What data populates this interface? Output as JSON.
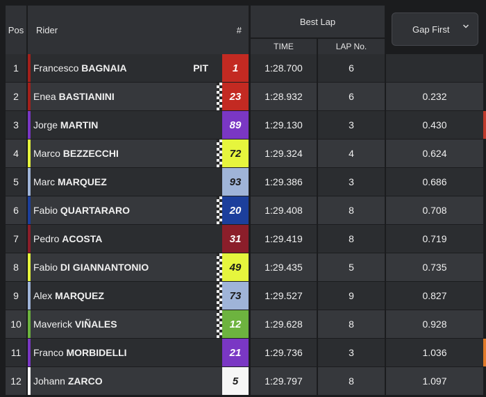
{
  "header": {
    "pos": "Pos",
    "rider": "Rider",
    "number": "#",
    "best_lap": "Best Lap",
    "time": "TIME",
    "lap_no": "LAP No.",
    "gap_select": "Gap First"
  },
  "rows": [
    {
      "pos": "1",
      "first": "Francesco",
      "last": "BAGNAIA",
      "pit": "PIT",
      "num": "1",
      "numBg": "#c32a22",
      "numColor": "#ffffff",
      "stripe": "#a3201b",
      "checker": false,
      "time": "1:28.700",
      "lap": "6",
      "gap": "",
      "edge": ""
    },
    {
      "pos": "2",
      "first": "Enea",
      "last": "BASTIANINI",
      "pit": "",
      "num": "23",
      "numBg": "#c32a22",
      "numColor": "#ffffff",
      "stripe": "#a3201b",
      "checker": true,
      "time": "1:28.932",
      "lap": "6",
      "gap": "0.232",
      "edge": ""
    },
    {
      "pos": "3",
      "first": "Jorge",
      "last": "MARTIN",
      "pit": "",
      "num": "89",
      "numBg": "#7a37c4",
      "numColor": "#ffffff",
      "stripe": "#7a37c4",
      "checker": false,
      "time": "1:29.130",
      "lap": "3",
      "gap": "0.430",
      "edge": "#c0392b"
    },
    {
      "pos": "4",
      "first": "Marco",
      "last": "BEZZECCHI",
      "pit": "",
      "num": "72",
      "numBg": "#e6f53d",
      "numColor": "#1a1a1a",
      "stripe": "#e6f53d",
      "checker": true,
      "time": "1:29.324",
      "lap": "4",
      "gap": "0.624",
      "edge": ""
    },
    {
      "pos": "5",
      "first": "Marc",
      "last": "MARQUEZ",
      "pit": "",
      "num": "93",
      "numBg": "#9fb4d8",
      "numColor": "#1a1a1a",
      "stripe": "#9fb4d8",
      "checker": false,
      "time": "1:29.386",
      "lap": "3",
      "gap": "0.686",
      "edge": ""
    },
    {
      "pos": "6",
      "first": "Fabio",
      "last": "QUARTARARO",
      "pit": "",
      "num": "20",
      "numBg": "#1c3f9c",
      "numColor": "#ffffff",
      "stripe": "#1c3f9c",
      "checker": true,
      "time": "1:29.408",
      "lap": "8",
      "gap": "0.708",
      "edge": ""
    },
    {
      "pos": "7",
      "first": "Pedro",
      "last": "ACOSTA",
      "pit": "",
      "num": "31",
      "numBg": "#8b1e2a",
      "numColor": "#ffffff",
      "stripe": "#8b1e2a",
      "checker": false,
      "time": "1:29.419",
      "lap": "8",
      "gap": "0.719",
      "edge": ""
    },
    {
      "pos": "8",
      "first": "Fabio",
      "last": "DI GIANNANTONIO",
      "pit": "",
      "num": "49",
      "numBg": "#e6f53d",
      "numColor": "#1a1a1a",
      "stripe": "#e6f53d",
      "checker": true,
      "time": "1:29.435",
      "lap": "5",
      "gap": "0.735",
      "edge": ""
    },
    {
      "pos": "9",
      "first": "Alex",
      "last": "MARQUEZ",
      "pit": "",
      "num": "73",
      "numBg": "#9fb4d8",
      "numColor": "#1a1a1a",
      "stripe": "#9fb4d8",
      "checker": true,
      "time": "1:29.527",
      "lap": "9",
      "gap": "0.827",
      "edge": ""
    },
    {
      "pos": "10",
      "first": "Maverick",
      "last": "VIÑALES",
      "pit": "",
      "num": "12",
      "numBg": "#6db33f",
      "numColor": "#ffffff",
      "stripe": "#6db33f",
      "checker": true,
      "time": "1:29.628",
      "lap": "8",
      "gap": "0.928",
      "edge": ""
    },
    {
      "pos": "11",
      "first": "Franco",
      "last": "MORBIDELLI",
      "pit": "",
      "num": "21",
      "numBg": "#7a37c4",
      "numColor": "#ffffff",
      "stripe": "#7a37c4",
      "checker": false,
      "time": "1:29.736",
      "lap": "3",
      "gap": "1.036",
      "edge": "#e07a2a"
    },
    {
      "pos": "12",
      "first": "Johann",
      "last": "ZARCO",
      "pit": "",
      "num": "5",
      "numBg": "#f6f6f6",
      "numColor": "#1a1a1a",
      "stripe": "#f6f6f6",
      "checker": false,
      "time": "1:29.797",
      "lap": "8",
      "gap": "1.097",
      "edge": ""
    }
  ]
}
